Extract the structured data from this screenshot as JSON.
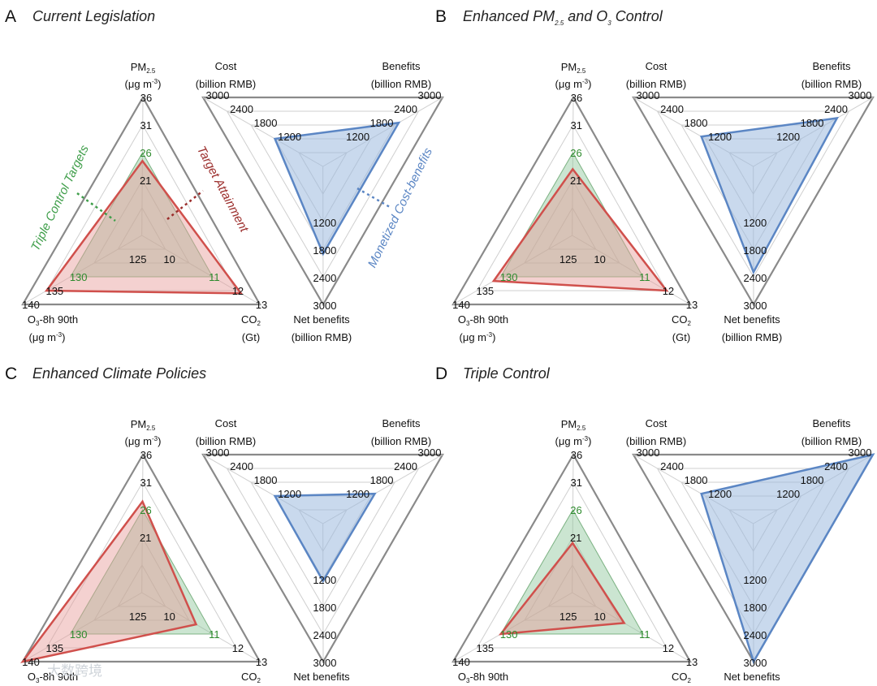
{
  "watermark": "大数跨境",
  "colors": {
    "target": "#3f9e4a",
    "targetFill": "#8cc69a",
    "attain": "#d0504c",
    "attainFill": "#e79a96",
    "cost": "#5b86c4",
    "costFill": "#9db9de",
    "frame": "#8a8a8a",
    "grid": "#cfcfcf"
  },
  "annotations": {
    "targets": "Triple Control Targets",
    "attainment": "Target Attainment",
    "costbenefits": "Monetized Cost-benefits"
  },
  "chart_data": [
    {
      "type": "radar",
      "letter": "A",
      "title": "Current Legislation",
      "left_axes": [
        {
          "name": "PM",
          "sub": "2.5",
          "unit": "(μg m",
          "unitsup": "-3",
          "unitend": ")"
        },
        {
          "name": "O",
          "sub": "3",
          "name2": "-8h 90th",
          "unit": "(μg m",
          "unitsup": "-3",
          "unitend": ")"
        },
        {
          "name": "CO",
          "sub": "2",
          "unit": "(Gt)"
        }
      ],
      "right_axes": [
        {
          "name": "Cost",
          "unit": "(billion RMB)"
        },
        {
          "name": "Benefits",
          "unit": "(billion RMB)"
        },
        {
          "name": "Net benefits",
          "unit": "(billion RMB)"
        }
      ],
      "ticks": {
        "pm25": [
          "21",
          "26",
          "31",
          "36"
        ],
        "o3": [
          "125",
          "130",
          "135",
          "140"
        ],
        "co2": [
          "10",
          "11",
          "12",
          "13"
        ],
        "cost": [
          "1200",
          "1800",
          "2400",
          "3000"
        ],
        "benefits": [
          "1200",
          "1800",
          "2400",
          "3000"
        ],
        "net": [
          "1200",
          "1800",
          "2400",
          "3000"
        ]
      },
      "targets": {
        "pm25": 26,
        "o3": 130,
        "co2": 11
      },
      "attainment": {
        "pm25": 24.5,
        "o3": 135,
        "co2": 12.2
      },
      "costbenefits": {
        "cost": 1200,
        "benefits": 1900,
        "net": 1900
      }
    },
    {
      "type": "radar",
      "letter": "B",
      "title": "Enhanced PM2.5 and O3 Control",
      "title_parts": [
        "Enhanced PM",
        "2.5",
        " and O",
        "3",
        " Control"
      ],
      "targets": {
        "pm25": 26,
        "o3": 130,
        "co2": 11
      },
      "attainment": {
        "pm25": 23,
        "o3": 131.5,
        "co2": 12
      },
      "costbenefits": {
        "cost": 1300,
        "benefits": 2100,
        "net": 2300
      }
    },
    {
      "type": "radar",
      "letter": "C",
      "title": "Enhanced Climate Policies",
      "targets": {
        "pm25": 26,
        "o3": 130,
        "co2": 11
      },
      "attainment": {
        "pm25": 27.5,
        "o3": 140,
        "co2": 10.3
      },
      "costbenefits": {
        "cost": 1200,
        "benefits": 1300,
        "net": 1250
      }
    },
    {
      "type": "radar",
      "letter": "D",
      "title": "Triple Control",
      "targets": {
        "pm25": 26,
        "o3": 130,
        "co2": 11
      },
      "attainment": {
        "pm25": 20,
        "o3": 130,
        "co2": 10.2
      },
      "costbenefits": {
        "cost": 1300,
        "benefits": 3000,
        "net": 3000
      }
    }
  ]
}
